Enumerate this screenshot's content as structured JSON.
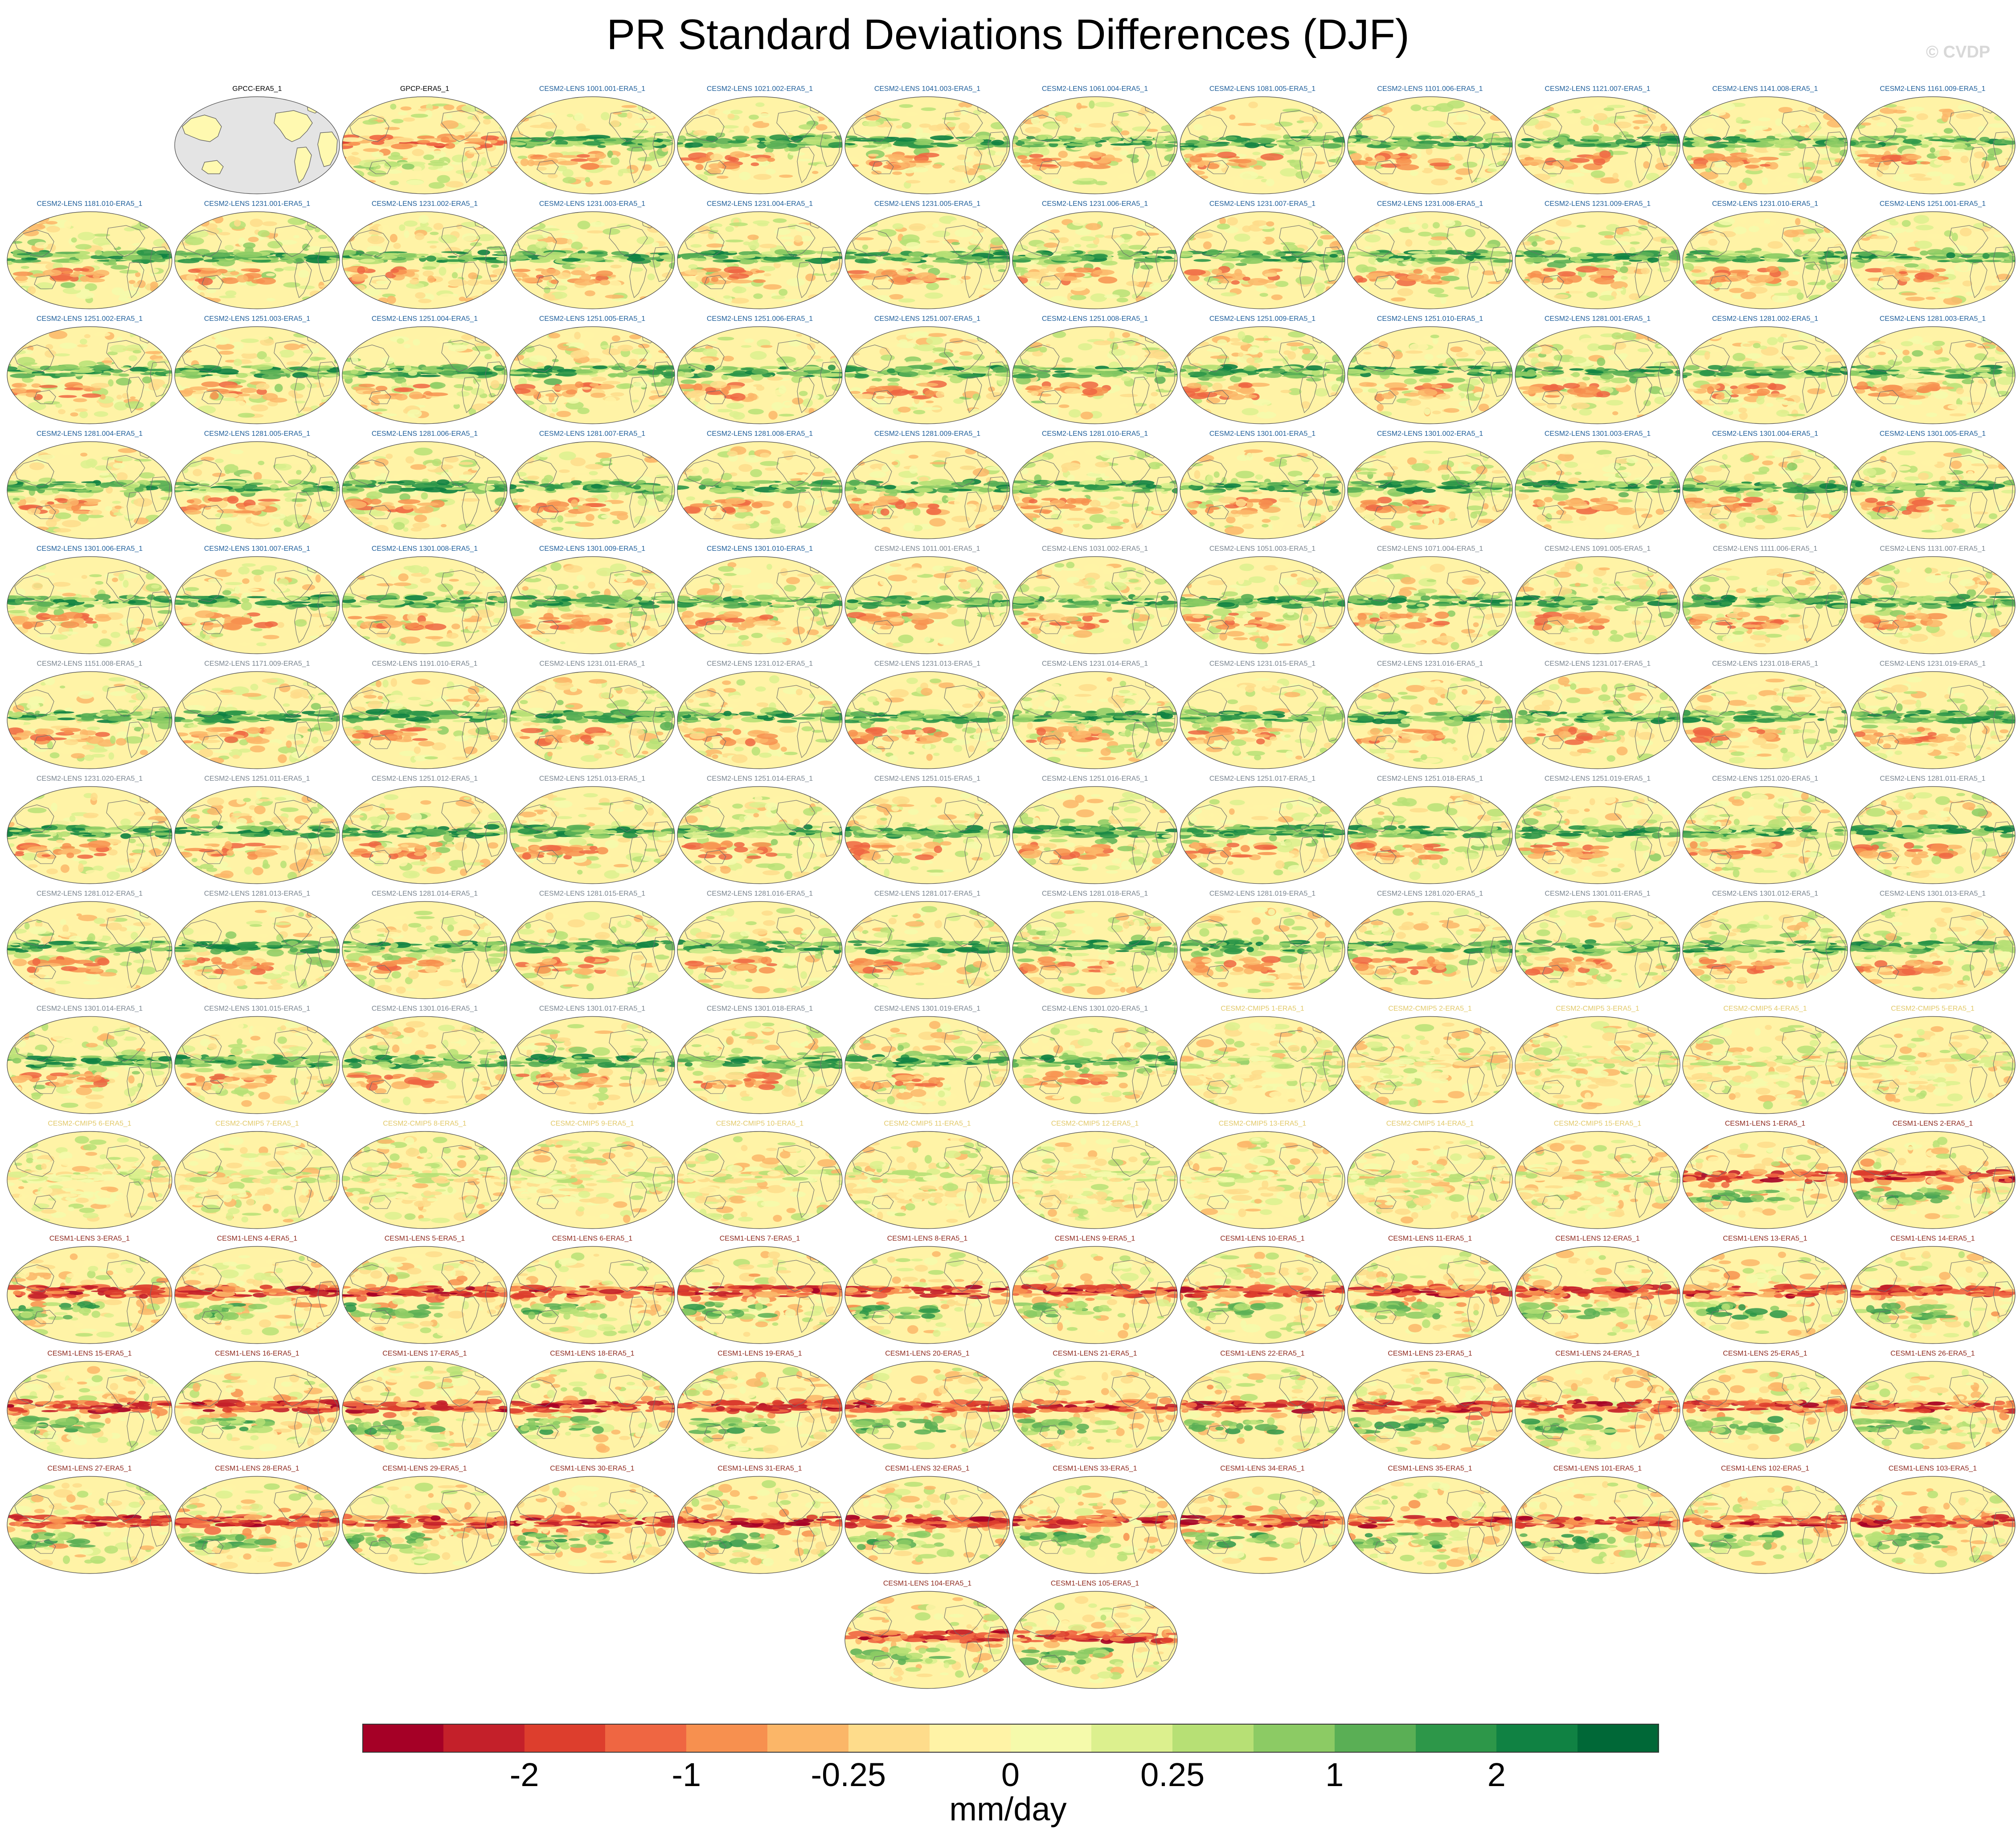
{
  "title": "PR Standard Deviations Differences (DJF)",
  "watermark": "© CVDP",
  "colors": {
    "colorbar": [
      "#a50026",
      "#c4202a",
      "#dd3e2d",
      "#ef6642",
      "#f7904f",
      "#fbb668",
      "#fedc8b",
      "#fff3a6",
      "#f5faab",
      "#dcf08e",
      "#b7e075",
      "#8ccb64",
      "#5aaf55",
      "#2d9749",
      "#108243",
      "#006837"
    ],
    "cesm2_label": "#1f5f9b",
    "cmip5_label": "#e2c96a",
    "cesm1_label": "#8f2a1f",
    "obs_label": "#000000"
  },
  "chart_data": {
    "type": "heatmap",
    "title": "PR Standard Deviations Differences (DJF)",
    "units_label": "mm/day",
    "colorbar_ticks": [
      "-2",
      "-1",
      "-0.25",
      "0",
      "0.25",
      "1",
      "2"
    ],
    "projection": "Robinson global map per panel",
    "panels": [
      {
        "label": "GPCC-ERA5_1",
        "group": "obs",
        "missing": true
      },
      {
        "label": "GPCP-ERA5_1",
        "group": "obs"
      },
      {
        "label": "CESM2-LENS 1001.001-ERA5_1",
        "group": "cesm2"
      },
      {
        "label": "CESM2-LENS 1021.002-ERA5_1",
        "group": "cesm2"
      },
      {
        "label": "CESM2-LENS 1041.003-ERA5_1",
        "group": "cesm2"
      },
      {
        "label": "CESM2-LENS 1061.004-ERA5_1",
        "group": "cesm2"
      },
      {
        "label": "CESM2-LENS 1081.005-ERA5_1",
        "group": "cesm2"
      },
      {
        "label": "CESM2-LENS 1101.006-ERA5_1",
        "group": "cesm2"
      },
      {
        "label": "CESM2-LENS 1121.007-ERA5_1",
        "group": "cesm2"
      },
      {
        "label": "CESM2-LENS 1141.008-ERA5_1",
        "group": "cesm2"
      },
      {
        "label": "CESM2-LENS 1161.009-ERA5_1",
        "group": "cesm2"
      },
      {
        "label": "CESM2-LENS 1181.010-ERA5_1",
        "group": "cesm2"
      },
      {
        "label": "CESM2-LENS 1231.001-ERA5_1",
        "group": "cesm2"
      },
      {
        "label": "CESM2-LENS 1231.002-ERA5_1",
        "group": "cesm2"
      },
      {
        "label": "CESM2-LENS 1231.003-ERA5_1",
        "group": "cesm2"
      },
      {
        "label": "CESM2-LENS 1231.004-ERA5_1",
        "group": "cesm2"
      },
      {
        "label": "CESM2-LENS 1231.005-ERA5_1",
        "group": "cesm2"
      },
      {
        "label": "CESM2-LENS 1231.006-ERA5_1",
        "group": "cesm2"
      },
      {
        "label": "CESM2-LENS 1231.007-ERA5_1",
        "group": "cesm2"
      },
      {
        "label": "CESM2-LENS 1231.008-ERA5_1",
        "group": "cesm2"
      },
      {
        "label": "CESM2-LENS 1231.009-ERA5_1",
        "group": "cesm2"
      },
      {
        "label": "CESM2-LENS 1231.010-ERA5_1",
        "group": "cesm2"
      },
      {
        "label": "CESM2-LENS 1251.001-ERA5_1",
        "group": "cesm2"
      },
      {
        "label": "CESM2-LENS 1251.002-ERA5_1",
        "group": "cesm2"
      },
      {
        "label": "CESM2-LENS 1251.003-ERA5_1",
        "group": "cesm2"
      },
      {
        "label": "CESM2-LENS 1251.004-ERA5_1",
        "group": "cesm2"
      },
      {
        "label": "CESM2-LENS 1251.005-ERA5_1",
        "group": "cesm2"
      },
      {
        "label": "CESM2-LENS 1251.006-ERA5_1",
        "group": "cesm2"
      },
      {
        "label": "CESM2-LENS 1251.007-ERA5_1",
        "group": "cesm2"
      },
      {
        "label": "CESM2-LENS 1251.008-ERA5_1",
        "group": "cesm2"
      },
      {
        "label": "CESM2-LENS 1251.009-ERA5_1",
        "group": "cesm2"
      },
      {
        "label": "CESM2-LENS 1251.010-ERA5_1",
        "group": "cesm2"
      },
      {
        "label": "CESM2-LENS 1281.001-ERA5_1",
        "group": "cesm2"
      },
      {
        "label": "CESM2-LENS 1281.002-ERA5_1",
        "group": "cesm2"
      },
      {
        "label": "CESM2-LENS 1281.003-ERA5_1",
        "group": "cesm2"
      },
      {
        "label": "CESM2-LENS 1281.004-ERA5_1",
        "group": "cesm2"
      },
      {
        "label": "CESM2-LENS 1281.005-ERA5_1",
        "group": "cesm2"
      },
      {
        "label": "CESM2-LENS 1281.006-ERA5_1",
        "group": "cesm2"
      },
      {
        "label": "CESM2-LENS 1281.007-ERA5_1",
        "group": "cesm2"
      },
      {
        "label": "CESM2-LENS 1281.008-ERA5_1",
        "group": "cesm2"
      },
      {
        "label": "CESM2-LENS 1281.009-ERA5_1",
        "group": "cesm2"
      },
      {
        "label": "CESM2-LENS 1281.010-ERA5_1",
        "group": "cesm2"
      },
      {
        "label": "CESM2-LENS 1301.001-ERA5_1",
        "group": "cesm2"
      },
      {
        "label": "CESM2-LENS 1301.002-ERA5_1",
        "group": "cesm2"
      },
      {
        "label": "CESM2-LENS 1301.003-ERA5_1",
        "group": "cesm2"
      },
      {
        "label": "CESM2-LENS 1301.004-ERA5_1",
        "group": "cesm2"
      },
      {
        "label": "CESM2-LENS 1301.005-ERA5_1",
        "group": "cesm2"
      },
      {
        "label": "CESM2-LENS 1301.006-ERA5_1",
        "group": "cesm2"
      },
      {
        "label": "CESM2-LENS 1301.007-ERA5_1",
        "group": "cesm2"
      },
      {
        "label": "CESM2-LENS 1301.008-ERA5_1",
        "group": "cesm2"
      },
      {
        "label": "CESM2-LENS 1301.009-ERA5_1",
        "group": "cesm2"
      },
      {
        "label": "CESM2-LENS 1301.010-ERA5_1",
        "group": "cesm2"
      },
      {
        "label": "CESM2-LENS 1011.001-ERA5_1",
        "group": "cesm2b"
      },
      {
        "label": "CESM2-LENS 1031.002-ERA5_1",
        "group": "cesm2b"
      },
      {
        "label": "CESM2-LENS 1051.003-ERA5_1",
        "group": "cesm2b"
      },
      {
        "label": "CESM2-LENS 1071.004-ERA5_1",
        "group": "cesm2b"
      },
      {
        "label": "CESM2-LENS 1091.005-ERA5_1",
        "group": "cesm2b"
      },
      {
        "label": "CESM2-LENS 1111.006-ERA5_1",
        "group": "cesm2b"
      },
      {
        "label": "CESM2-LENS 1131.007-ERA5_1",
        "group": "cesm2b"
      },
      {
        "label": "CESM2-LENS 1151.008-ERA5_1",
        "group": "cesm2b"
      },
      {
        "label": "CESM2-LENS 1171.009-ERA5_1",
        "group": "cesm2b"
      },
      {
        "label": "CESM2-LENS 1191.010-ERA5_1",
        "group": "cesm2b"
      },
      {
        "label": "CESM2-LENS 1231.011-ERA5_1",
        "group": "cesm2b"
      },
      {
        "label": "CESM2-LENS 1231.012-ERA5_1",
        "group": "cesm2b"
      },
      {
        "label": "CESM2-LENS 1231.013-ERA5_1",
        "group": "cesm2b"
      },
      {
        "label": "CESM2-LENS 1231.014-ERA5_1",
        "group": "cesm2b"
      },
      {
        "label": "CESM2-LENS 1231.015-ERA5_1",
        "group": "cesm2b"
      },
      {
        "label": "CESM2-LENS 1231.016-ERA5_1",
        "group": "cesm2b"
      },
      {
        "label": "CESM2-LENS 1231.017-ERA5_1",
        "group": "cesm2b"
      },
      {
        "label": "CESM2-LENS 1231.018-ERA5_1",
        "group": "cesm2b"
      },
      {
        "label": "CESM2-LENS 1231.019-ERA5_1",
        "group": "cesm2b"
      },
      {
        "label": "CESM2-LENS 1231.020-ERA5_1",
        "group": "cesm2b"
      },
      {
        "label": "CESM2-LENS 1251.011-ERA5_1",
        "group": "cesm2b"
      },
      {
        "label": "CESM2-LENS 1251.012-ERA5_1",
        "group": "cesm2b"
      },
      {
        "label": "CESM2-LENS 1251.013-ERA5_1",
        "group": "cesm2b"
      },
      {
        "label": "CESM2-LENS 1251.014-ERA5_1",
        "group": "cesm2b"
      },
      {
        "label": "CESM2-LENS 1251.015-ERA5_1",
        "group": "cesm2b"
      },
      {
        "label": "CESM2-LENS 1251.016-ERA5_1",
        "group": "cesm2b"
      },
      {
        "label": "CESM2-LENS 1251.017-ERA5_1",
        "group": "cesm2b"
      },
      {
        "label": "CESM2-LENS 1251.018-ERA5_1",
        "group": "cesm2b"
      },
      {
        "label": "CESM2-LENS 1251.019-ERA5_1",
        "group": "cesm2b"
      },
      {
        "label": "CESM2-LENS 1251.020-ERA5_1",
        "group": "cesm2b"
      },
      {
        "label": "CESM2-LENS 1281.011-ERA5_1",
        "group": "cesm2b"
      },
      {
        "label": "CESM2-LENS 1281.012-ERA5_1",
        "group": "cesm2b"
      },
      {
        "label": "CESM2-LENS 1281.013-ERA5_1",
        "group": "cesm2b"
      },
      {
        "label": "CESM2-LENS 1281.014-ERA5_1",
        "group": "cesm2b"
      },
      {
        "label": "CESM2-LENS 1281.015-ERA5_1",
        "group": "cesm2b"
      },
      {
        "label": "CESM2-LENS 1281.016-ERA5_1",
        "group": "cesm2b"
      },
      {
        "label": "CESM2-LENS 1281.017-ERA5_1",
        "group": "cesm2b"
      },
      {
        "label": "CESM2-LENS 1281.018-ERA5_1",
        "group": "cesm2b"
      },
      {
        "label": "CESM2-LENS 1281.019-ERA5_1",
        "group": "cesm2b"
      },
      {
        "label": "CESM2-LENS 1281.020-ERA5_1",
        "group": "cesm2b"
      },
      {
        "label": "CESM2-LENS 1301.011-ERA5_1",
        "group": "cesm2b"
      },
      {
        "label": "CESM2-LENS 1301.012-ERA5_1",
        "group": "cesm2b"
      },
      {
        "label": "CESM2-LENS 1301.013-ERA5_1",
        "group": "cesm2b"
      },
      {
        "label": "CESM2-LENS 1301.014-ERA5_1",
        "group": "cesm2b"
      },
      {
        "label": "CESM2-LENS 1301.015-ERA5_1",
        "group": "cesm2b"
      },
      {
        "label": "CESM2-LENS 1301.016-ERA5_1",
        "group": "cesm2b"
      },
      {
        "label": "CESM2-LENS 1301.017-ERA5_1",
        "group": "cesm2b"
      },
      {
        "label": "CESM2-LENS 1301.018-ERA5_1",
        "group": "cesm2b"
      },
      {
        "label": "CESM2-LENS 1301.019-ERA5_1",
        "group": "cesm2b"
      },
      {
        "label": "CESM2-LENS 1301.020-ERA5_1",
        "group": "cesm2b"
      },
      {
        "label": "CESM2-CMIP5 1-ERA5_1",
        "group": "cmip5"
      },
      {
        "label": "CESM2-CMIP5 2-ERA5_1",
        "group": "cmip5"
      },
      {
        "label": "CESM2-CMIP5 3-ERA5_1",
        "group": "cmip5"
      },
      {
        "label": "CESM2-CMIP5 4-ERA5_1",
        "group": "cmip5"
      },
      {
        "label": "CESM2-CMIP5 5-ERA5_1",
        "group": "cmip5"
      },
      {
        "label": "CESM2-CMIP5 6-ERA5_1",
        "group": "cmip5"
      },
      {
        "label": "CESM2-CMIP5 7-ERA5_1",
        "group": "cmip5"
      },
      {
        "label": "CESM2-CMIP5 8-ERA5_1",
        "group": "cmip5"
      },
      {
        "label": "CESM2-CMIP5 9-ERA5_1",
        "group": "cmip5"
      },
      {
        "label": "CESM2-CMIP5 10-ERA5_1",
        "group": "cmip5"
      },
      {
        "label": "CESM2-CMIP5 11-ERA5_1",
        "group": "cmip5"
      },
      {
        "label": "CESM2-CMIP5 12-ERA5_1",
        "group": "cmip5"
      },
      {
        "label": "CESM2-CMIP5 13-ERA5_1",
        "group": "cmip5"
      },
      {
        "label": "CESM2-CMIP5 14-ERA5_1",
        "group": "cmip5"
      },
      {
        "label": "CESM2-CMIP5 15-ERA5_1",
        "group": "cmip5"
      },
      {
        "label": "CESM1-LENS 1-ERA5_1",
        "group": "cesm1"
      },
      {
        "label": "CESM1-LENS 2-ERA5_1",
        "group": "cesm1"
      },
      {
        "label": "CESM1-LENS 3-ERA5_1",
        "group": "cesm1"
      },
      {
        "label": "CESM1-LENS 4-ERA5_1",
        "group": "cesm1"
      },
      {
        "label": "CESM1-LENS 5-ERA5_1",
        "group": "cesm1"
      },
      {
        "label": "CESM1-LENS 6-ERA5_1",
        "group": "cesm1"
      },
      {
        "label": "CESM1-LENS 7-ERA5_1",
        "group": "cesm1"
      },
      {
        "label": "CESM1-LENS 8-ERA5_1",
        "group": "cesm1"
      },
      {
        "label": "CESM1-LENS 9-ERA5_1",
        "group": "cesm1"
      },
      {
        "label": "CESM1-LENS 10-ERA5_1",
        "group": "cesm1"
      },
      {
        "label": "CESM1-LENS 11-ERA5_1",
        "group": "cesm1"
      },
      {
        "label": "CESM1-LENS 12-ERA5_1",
        "group": "cesm1"
      },
      {
        "label": "CESM1-LENS 13-ERA5_1",
        "group": "cesm1"
      },
      {
        "label": "CESM1-LENS 14-ERA5_1",
        "group": "cesm1"
      },
      {
        "label": "CESM1-LENS 15-ERA5_1",
        "group": "cesm1"
      },
      {
        "label": "CESM1-LENS 16-ERA5_1",
        "group": "cesm1"
      },
      {
        "label": "CESM1-LENS 17-ERA5_1",
        "group": "cesm1"
      },
      {
        "label": "CESM1-LENS 18-ERA5_1",
        "group": "cesm1"
      },
      {
        "label": "CESM1-LENS 19-ERA5_1",
        "group": "cesm1"
      },
      {
        "label": "CESM1-LENS 20-ERA5_1",
        "group": "cesm1"
      },
      {
        "label": "CESM1-LENS 21-ERA5_1",
        "group": "cesm1"
      },
      {
        "label": "CESM1-LENS 22-ERA5_1",
        "group": "cesm1"
      },
      {
        "label": "CESM1-LENS 23-ERA5_1",
        "group": "cesm1"
      },
      {
        "label": "CESM1-LENS 24-ERA5_1",
        "group": "cesm1"
      },
      {
        "label": "CESM1-LENS 25-ERA5_1",
        "group": "cesm1"
      },
      {
        "label": "CESM1-LENS 26-ERA5_1",
        "group": "cesm1"
      },
      {
        "label": "CESM1-LENS 27-ERA5_1",
        "group": "cesm1"
      },
      {
        "label": "CESM1-LENS 28-ERA5_1",
        "group": "cesm1"
      },
      {
        "label": "CESM1-LENS 29-ERA5_1",
        "group": "cesm1"
      },
      {
        "label": "CESM1-LENS 30-ERA5_1",
        "group": "cesm1"
      },
      {
        "label": "CESM1-LENS 31-ERA5_1",
        "group": "cesm1"
      },
      {
        "label": "CESM1-LENS 32-ERA5_1",
        "group": "cesm1"
      },
      {
        "label": "CESM1-LENS 33-ERA5_1",
        "group": "cesm1"
      },
      {
        "label": "CESM1-LENS 34-ERA5_1",
        "group": "cesm1"
      },
      {
        "label": "CESM1-LENS 35-ERA5_1",
        "group": "cesm1"
      },
      {
        "label": "CESM1-LENS 101-ERA5_1",
        "group": "cesm1"
      },
      {
        "label": "CESM1-LENS 102-ERA5_1",
        "group": "cesm1"
      },
      {
        "label": "CESM1-LENS 103-ERA5_1",
        "group": "cesm1"
      },
      {
        "label": "CESM1-LENS 104-ERA5_1",
        "group": "cesm1"
      },
      {
        "label": "CESM1-LENS 105-ERA5_1",
        "group": "cesm1"
      }
    ]
  }
}
